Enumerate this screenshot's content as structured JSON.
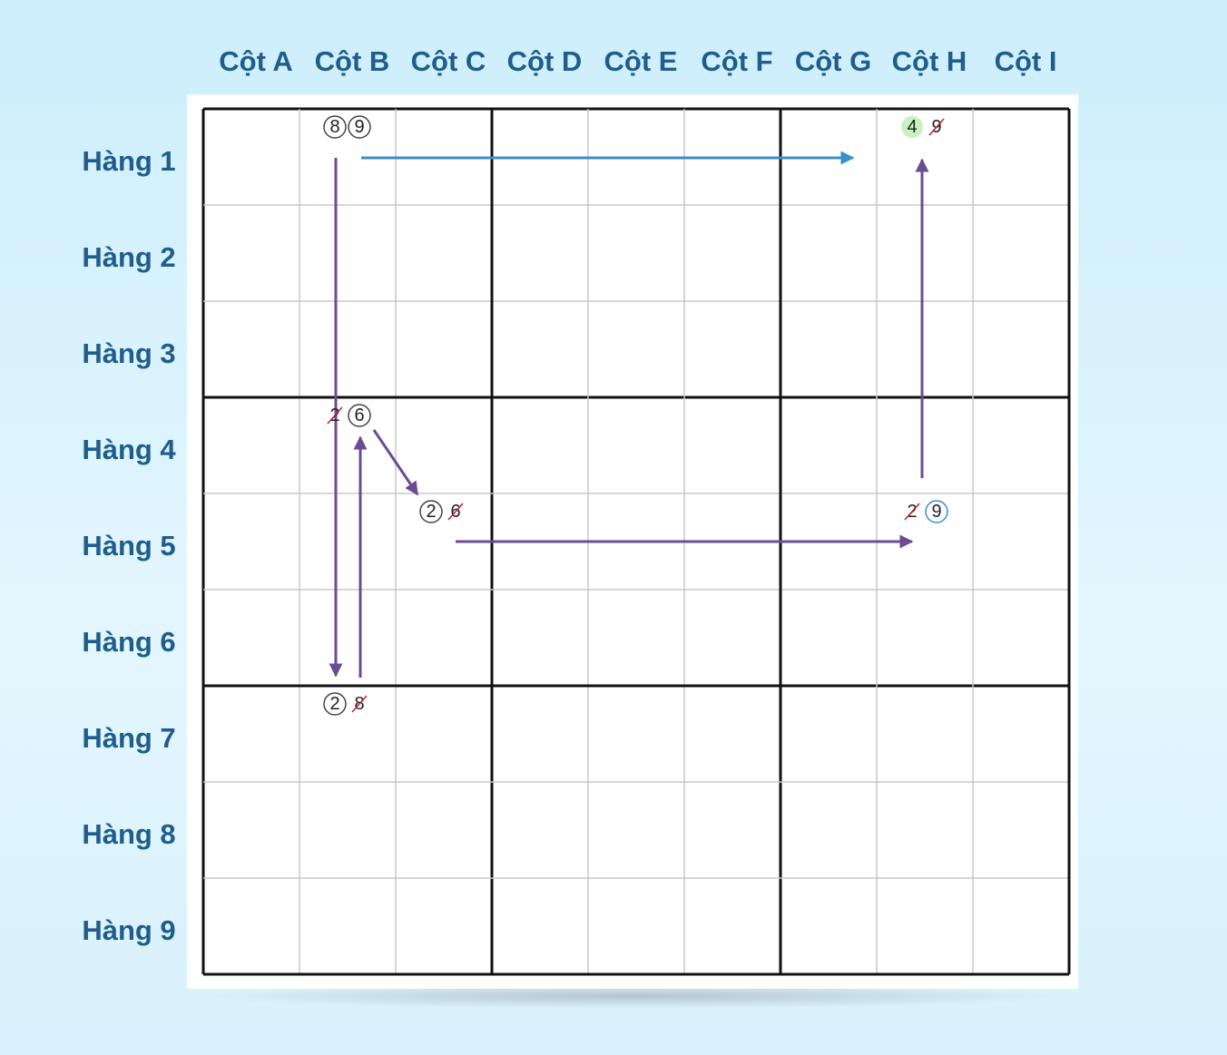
{
  "columns": [
    "Cột A",
    "Cột B",
    "Cột C",
    "Cột D",
    "Cột E",
    "Cột F",
    "Cột G",
    "Cột H",
    "Cột I"
  ],
  "rows": [
    "Hàng 1",
    "Hàng 2",
    "Hàng 3",
    "Hàng 4",
    "Hàng 5",
    "Hàng 6",
    "Hàng 7",
    "Hàng 8",
    "Hàng 9"
  ],
  "grid": [
    [
      [],
      [
        {
          "digit": "8",
          "mark": "circle"
        },
        {
          "digit": "9",
          "mark": "circle"
        }
      ],
      [],
      [],
      [],
      [],
      [],
      [
        {
          "digit": "4",
          "mark": "highlight"
        },
        {
          "digit": "9",
          "mark": "strike"
        }
      ],
      []
    ],
    [
      [],
      [],
      [],
      [],
      [],
      [],
      [],
      [],
      []
    ],
    [
      [],
      [],
      [],
      [],
      [],
      [],
      [],
      [],
      []
    ],
    [
      [],
      [
        {
          "digit": "2",
          "mark": "strike"
        },
        {
          "digit": "6",
          "mark": "circle"
        }
      ],
      [],
      [],
      [],
      [],
      [],
      [],
      []
    ],
    [
      [],
      [],
      [
        {
          "digit": "2",
          "mark": "circle"
        },
        {
          "digit": "6",
          "mark": "strike"
        }
      ],
      [],
      [],
      [],
      [],
      [
        {
          "digit": "2",
          "mark": "strike"
        },
        {
          "digit": "9",
          "mark": "circle-blue"
        }
      ],
      []
    ],
    [
      [],
      [],
      [],
      [],
      [],
      [],
      [],
      [],
      []
    ],
    [
      [],
      [
        {
          "digit": "2",
          "mark": "circle"
        },
        {
          "digit": "8",
          "mark": "strike"
        }
      ],
      [],
      [],
      [],
      [],
      [],
      [],
      []
    ],
    [
      [],
      [],
      [],
      [],
      [],
      [],
      [],
      [],
      []
    ],
    [
      [],
      [],
      [],
      [],
      [],
      [],
      [],
      [],
      []
    ]
  ]
}
